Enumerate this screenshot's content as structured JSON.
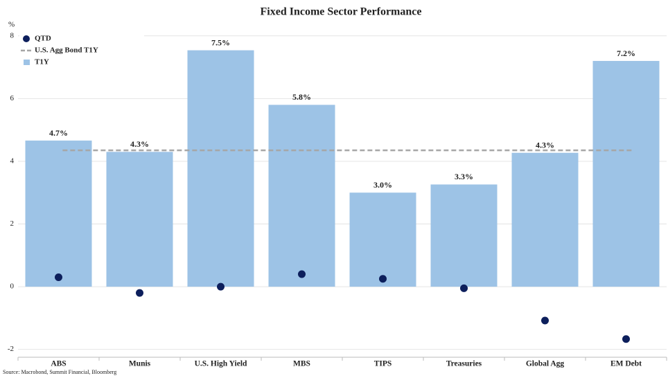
{
  "chart_data": {
    "type": "bar",
    "title": "Fixed Income Sector Performance",
    "y_label": "%",
    "source": "Source: Macrobond, Summit Financial, Bloomberg",
    "categories": [
      "ABS",
      "Munis",
      "U.S. High Yield",
      "MBS",
      "TIPS",
      "Treasuries",
      "Global Agg",
      "EM Debt"
    ],
    "series": [
      {
        "name": "QTD",
        "type": "scatter",
        "color": "#0d1f5c",
        "values": [
          0.3,
          -0.2,
          0.0,
          0.4,
          0.25,
          -0.05,
          -1.08,
          -1.67
        ]
      },
      {
        "name": "T1Y",
        "type": "bar",
        "color": "#9dc3e6",
        "values": [
          4.66,
          4.3,
          7.54,
          5.8,
          3.0,
          3.26,
          4.27,
          7.2
        ],
        "value_labels": [
          "4.7%",
          "4.3%",
          "7.5%",
          "5.8%",
          "3.0%",
          "3.3%",
          "4.3%",
          "7.2%"
        ]
      }
    ],
    "reference_line": {
      "name": "U.S. Agg Bond T1Y",
      "value": 4.35,
      "color": "#a6a6a6"
    },
    "ylim": [
      -2.25,
      8.15
    ],
    "yticks": [
      -2,
      0,
      2,
      4,
      6,
      8
    ],
    "grid": true,
    "legend": "upper left"
  }
}
